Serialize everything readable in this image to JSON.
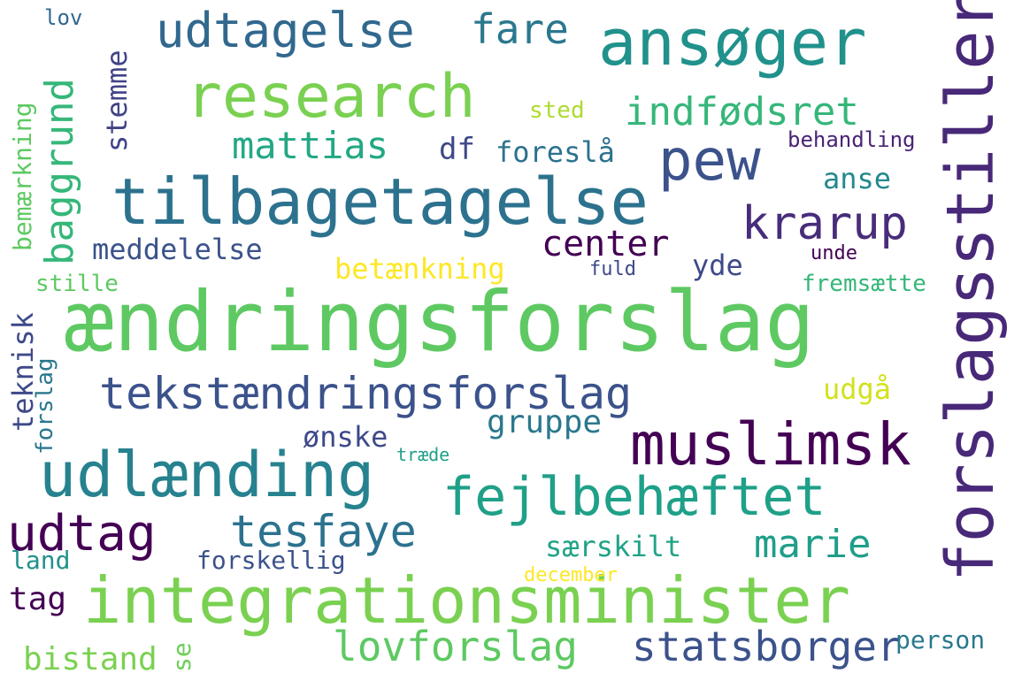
{
  "words": [
    {
      "text": "ændringsforslag",
      "color": "#5ec962"
    },
    {
      "text": "integrationsminister",
      "color": "#7ad151"
    },
    {
      "text": "tilbagetagelse",
      "color": "#2c728e"
    },
    {
      "text": "research",
      "color": "#7ad151"
    },
    {
      "text": "ansøger",
      "color": "#21918c"
    },
    {
      "text": "udtagelse",
      "color": "#31688e"
    },
    {
      "text": "forslagsstiller",
      "color": "#482878"
    },
    {
      "text": "muslimsk",
      "color": "#440154"
    },
    {
      "text": "udlænding",
      "color": "#26828e"
    },
    {
      "text": "fejlbehæftet",
      "color": "#1fa088"
    },
    {
      "text": "tekstændringsforslag",
      "color": "#3b528b"
    },
    {
      "text": "pew",
      "color": "#3b528b"
    },
    {
      "text": "krarup",
      "color": "#472d7b"
    },
    {
      "text": "mattias",
      "color": "#22a884"
    },
    {
      "text": "indfødsret",
      "color": "#35b779"
    },
    {
      "text": "fare",
      "color": "#2a788e"
    },
    {
      "text": "baggrund",
      "color": "#35b779"
    },
    {
      "text": "stemme",
      "color": "#414487"
    },
    {
      "text": "center",
      "color": "#440154"
    },
    {
      "text": "df",
      "color": "#3e4989"
    },
    {
      "text": "foreslå",
      "color": "#2c728e"
    },
    {
      "text": "sted",
      "color": "#addc30"
    },
    {
      "text": "behandling",
      "color": "#482475"
    },
    {
      "text": "anse",
      "color": "#23898e"
    },
    {
      "text": "meddelelse",
      "color": "#3b528b"
    },
    {
      "text": "betænkning",
      "color": "#fde725"
    },
    {
      "text": "yde",
      "color": "#3e4989"
    },
    {
      "text": "fuld",
      "color": "#3e4989"
    },
    {
      "text": "unde",
      "color": "#440154"
    },
    {
      "text": "fremsætte",
      "color": "#35b779"
    },
    {
      "text": "bemærkning",
      "color": "#5ec962"
    },
    {
      "text": "stille",
      "color": "#5ec962"
    },
    {
      "text": "lov",
      "color": "#31688e"
    },
    {
      "text": "teknisk",
      "color": "#3e4989"
    },
    {
      "text": "forslag",
      "color": "#2a788e"
    },
    {
      "text": "udgå",
      "color": "#d2e21b"
    },
    {
      "text": "gruppe",
      "color": "#2a788e"
    },
    {
      "text": "ønske",
      "color": "#3e4989"
    },
    {
      "text": "træde",
      "color": "#1fa088"
    },
    {
      "text": "udtag",
      "color": "#440154"
    },
    {
      "text": "tesfaye",
      "color": "#2c728e"
    },
    {
      "text": "marie",
      "color": "#1f9e89"
    },
    {
      "text": "særskilt",
      "color": "#20a386"
    },
    {
      "text": "land",
      "color": "#21918c"
    },
    {
      "text": "forskellig",
      "color": "#3b528b"
    },
    {
      "text": "december",
      "color": "#fde725"
    },
    {
      "text": "tag",
      "color": "#440154"
    },
    {
      "text": "lovforslag",
      "color": "#5ec962"
    },
    {
      "text": "statsborger",
      "color": "#3b528b"
    },
    {
      "text": "person",
      "color": "#2a788e"
    },
    {
      "text": "bistand",
      "color": "#7ad151"
    },
    {
      "text": "se",
      "color": "#6ece58"
    }
  ]
}
